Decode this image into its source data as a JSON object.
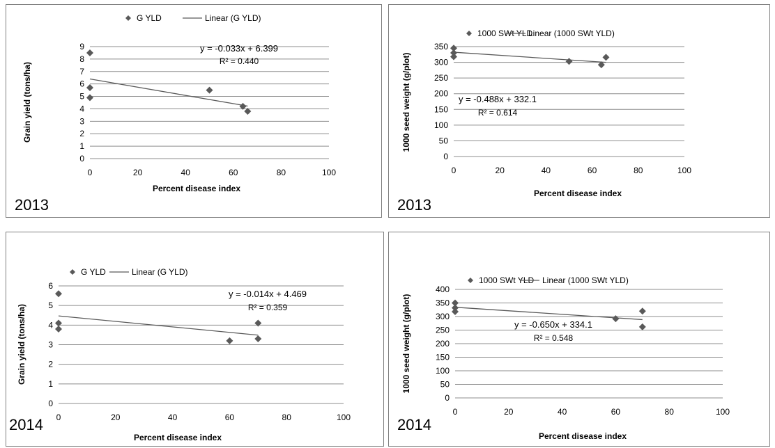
{
  "chart_data": [
    {
      "type": "scatter",
      "year_label": "2013",
      "xlabel": "Percent disease index",
      "ylabel": "Grain yield (tons/ha)",
      "xlim": [
        0,
        100
      ],
      "ylim": [
        0,
        9
      ],
      "xticks": [
        0,
        20,
        40,
        60,
        80,
        100
      ],
      "yticks": [
        0,
        1,
        2,
        3,
        4,
        5,
        6,
        7,
        8,
        9
      ],
      "grid": true,
      "series": [
        {
          "name": "G YLD",
          "points": [
            [
              0,
              8.5
            ],
            [
              0,
              5.7
            ],
            [
              0,
              4.9
            ],
            [
              50,
              5.5
            ],
            [
              64,
              4.2
            ],
            [
              66,
              3.8
            ]
          ],
          "color": "#595959"
        }
      ],
      "trendline": {
        "name": "Linear (G YLD)",
        "slope": -0.033,
        "intercept": 6.399,
        "x_range": [
          0,
          66
        ],
        "equation": "y = -0.033x + 6.399",
        "r2": "R² = 0.440"
      }
    },
    {
      "type": "scatter",
      "year_label": "2013",
      "xlabel": "Percent disease index",
      "ylabel": "1000 seed weight (g/plot)",
      "xlim": [
        0,
        100
      ],
      "ylim": [
        0,
        350
      ],
      "xticks": [
        0,
        20,
        40,
        60,
        80,
        100
      ],
      "yticks": [
        0,
        50,
        100,
        150,
        200,
        250,
        300,
        350
      ],
      "grid": true,
      "series": [
        {
          "name": "1000 SWt YLD",
          "points": [
            [
              0,
              345
            ],
            [
              0,
              330
            ],
            [
              0,
              318
            ],
            [
              50,
              303
            ],
            [
              64,
              292
            ],
            [
              66,
              316
            ]
          ],
          "color": "#595959"
        }
      ],
      "trendline": {
        "name": "Linear (1000 SWt YLD)",
        "slope": -0.488,
        "intercept": 332.1,
        "x_range": [
          0,
          66
        ],
        "equation": "y = -0.488x + 332.1",
        "r2": "R² = 0.614"
      }
    },
    {
      "type": "scatter",
      "year_label": "2014",
      "xlabel": "Percent disease index",
      "ylabel": "Grain yield (tons/ha)",
      "xlim": [
        0,
        100
      ],
      "ylim": [
        0,
        6
      ],
      "xticks": [
        0,
        20,
        40,
        60,
        80,
        100
      ],
      "yticks": [
        0,
        1,
        2,
        3,
        4,
        5,
        6
      ],
      "grid": true,
      "series": [
        {
          "name": "G YLD",
          "points": [
            [
              0,
              5.6
            ],
            [
              0,
              4.1
            ],
            [
              0,
              3.8
            ],
            [
              60,
              3.2
            ],
            [
              70,
              4.1
            ],
            [
              70,
              3.3
            ]
          ],
          "color": "#595959"
        }
      ],
      "trendline": {
        "name": "Linear (G YLD)",
        "slope": -0.014,
        "intercept": 4.469,
        "x_range": [
          0,
          70
        ],
        "equation": "y = -0.014x + 4.469",
        "r2": "R² = 0.359"
      }
    },
    {
      "type": "scatter",
      "year_label": "2014",
      "xlabel": "Percent disease index",
      "ylabel": "1000 seed weight (g/plot)",
      "xlim": [
        0,
        100
      ],
      "ylim": [
        0,
        400
      ],
      "xticks": [
        0,
        20,
        40,
        60,
        80,
        100
      ],
      "yticks": [
        0,
        50,
        100,
        150,
        200,
        250,
        300,
        350,
        400
      ],
      "grid": true,
      "series": [
        {
          "name": "1000 SWt YLD",
          "points": [
            [
              0,
              350
            ],
            [
              0,
              332
            ],
            [
              0,
              318
            ],
            [
              60,
              292
            ],
            [
              70,
              320
            ],
            [
              70,
              262
            ]
          ],
          "color": "#595959"
        }
      ],
      "trendline": {
        "name": "Linear (1000 SWt YLD)",
        "slope": -0.65,
        "intercept": 334.1,
        "x_range": [
          0,
          70
        ],
        "equation": "y = -0.650x + 334.1",
        "r2": "R² = 0.548"
      }
    }
  ]
}
